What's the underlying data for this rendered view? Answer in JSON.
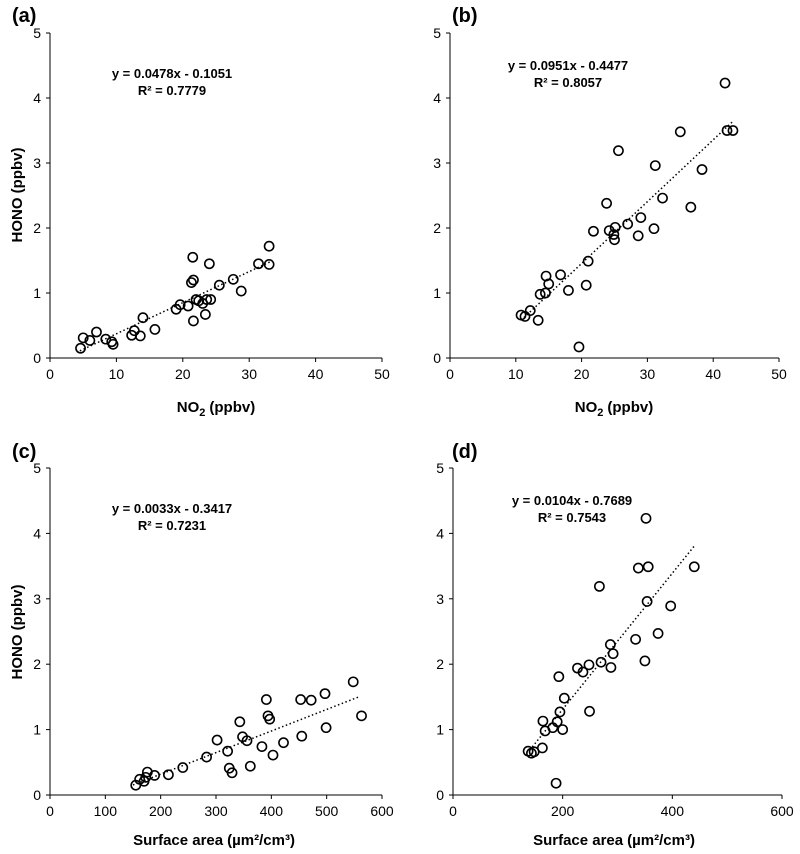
{
  "chart_data": [
    {
      "type": "scatter",
      "panel_label": "(a)",
      "xlabel": "NO",
      "xlabel_sub": "2",
      "xlabel_unit": "(ppbv)",
      "ylabel": "HONO (ppbv)",
      "xlim": [
        0,
        50
      ],
      "ylim": [
        0,
        5
      ],
      "xticks": [
        "0",
        "10",
        "20",
        "30",
        "40",
        "50"
      ],
      "yticks": [
        "0",
        "1",
        "2",
        "3",
        "4",
        "5"
      ],
      "equation": "y = 0.0478x - 0.1051",
      "r2": "R² = 0.7779",
      "trendline": {
        "slope": 0.0478,
        "intercept": -0.1051,
        "x_range": [
          4.5,
          33.3
        ]
      },
      "points": [
        [
          4.6,
          0.15
        ],
        [
          5.0,
          0.31
        ],
        [
          6.0,
          0.27
        ],
        [
          7.0,
          0.4
        ],
        [
          8.4,
          0.29
        ],
        [
          9.3,
          0.25
        ],
        [
          9.5,
          0.21
        ],
        [
          12.3,
          0.35
        ],
        [
          12.7,
          0.42
        ],
        [
          13.6,
          0.34
        ],
        [
          14.0,
          0.62
        ],
        [
          15.8,
          0.44
        ],
        [
          19.0,
          0.75
        ],
        [
          19.6,
          0.82
        ],
        [
          20.8,
          0.8
        ],
        [
          21.3,
          1.16
        ],
        [
          21.6,
          1.2
        ],
        [
          21.6,
          0.57
        ],
        [
          21.5,
          1.55
        ],
        [
          22.0,
          0.9
        ],
        [
          22.4,
          0.88
        ],
        [
          23.0,
          0.84
        ],
        [
          23.4,
          0.67
        ],
        [
          23.6,
          0.9
        ],
        [
          24.0,
          1.45
        ],
        [
          24.2,
          0.9
        ],
        [
          25.5,
          1.12
        ],
        [
          27.6,
          1.21
        ],
        [
          28.8,
          1.03
        ],
        [
          31.4,
          1.45
        ],
        [
          33.0,
          1.72
        ],
        [
          33.0,
          1.44
        ]
      ]
    },
    {
      "type": "scatter",
      "panel_label": "(b)",
      "xlabel": "NO",
      "xlabel_sub": "2",
      "xlabel_unit": "(ppbv)",
      "ylabel": "",
      "xlim": [
        0,
        50
      ],
      "ylim": [
        0,
        5
      ],
      "xticks": [
        "0",
        "10",
        "20",
        "30",
        "40",
        "50"
      ],
      "yticks": [
        "0",
        "1",
        "2",
        "3",
        "4",
        "5"
      ],
      "equation": "y = 0.0951x - 0.4477",
      "r2": "R² = 0.8057",
      "trendline": {
        "slope": 0.0951,
        "intercept": -0.4477,
        "x_range": [
          10.8,
          43.0
        ]
      },
      "points": [
        [
          10.8,
          0.66
        ],
        [
          11.4,
          0.64
        ],
        [
          12.2,
          0.73
        ],
        [
          13.4,
          0.58
        ],
        [
          13.7,
          0.98
        ],
        [
          14.5,
          1.0
        ],
        [
          14.6,
          1.26
        ],
        [
          15.0,
          1.14
        ],
        [
          16.8,
          1.28
        ],
        [
          18.0,
          1.04
        ],
        [
          19.6,
          0.17
        ],
        [
          20.7,
          1.12
        ],
        [
          21.0,
          1.49
        ],
        [
          21.8,
          1.95
        ],
        [
          23.8,
          2.38
        ],
        [
          24.2,
          1.96
        ],
        [
          24.9,
          1.9
        ],
        [
          25.0,
          1.82
        ],
        [
          25.1,
          2.01
        ],
        [
          25.6,
          3.19
        ],
        [
          27.0,
          2.06
        ],
        [
          28.6,
          1.88
        ],
        [
          29.0,
          2.16
        ],
        [
          31.0,
          1.99
        ],
        [
          31.2,
          2.96
        ],
        [
          32.3,
          2.46
        ],
        [
          35.0,
          3.48
        ],
        [
          36.6,
          2.32
        ],
        [
          38.3,
          2.9
        ],
        [
          41.8,
          4.23
        ],
        [
          42.1,
          3.5
        ],
        [
          43.0,
          3.5
        ]
      ]
    },
    {
      "type": "scatter",
      "panel_label": "(c)",
      "xlabel": "Surface area",
      "xlabel_unit": "(µm²/cm³)",
      "ylabel": "HONO (ppbv)",
      "xlim": [
        0,
        600
      ],
      "ylim": [
        0,
        5
      ],
      "xticks": [
        "0",
        "100",
        "200",
        "300",
        "400",
        "500",
        "600"
      ],
      "yticks": [
        "0",
        "1",
        "2",
        "3",
        "4",
        "5"
      ],
      "equation": "y = 0.0033x - 0.3417",
      "r2": "R² = 0.7231",
      "trendline": {
        "slope": 0.0033,
        "intercept": -0.3417,
        "x_range": [
          150,
          560
        ]
      },
      "points": [
        [
          155,
          0.15
        ],
        [
          162,
          0.24
        ],
        [
          170,
          0.21
        ],
        [
          173,
          0.27
        ],
        [
          176,
          0.35
        ],
        [
          189,
          0.3
        ],
        [
          214,
          0.31
        ],
        [
          240,
          0.42
        ],
        [
          283,
          0.58
        ],
        [
          302,
          0.84
        ],
        [
          321,
          0.67
        ],
        [
          324,
          0.41
        ],
        [
          329,
          0.34
        ],
        [
          343,
          1.12
        ],
        [
          348,
          0.89
        ],
        [
          356,
          0.83
        ],
        [
          362,
          0.44
        ],
        [
          383,
          0.74
        ],
        [
          391,
          1.46
        ],
        [
          394,
          1.21
        ],
        [
          397,
          1.16
        ],
        [
          403,
          0.61
        ],
        [
          422,
          0.8
        ],
        [
          453,
          1.46
        ],
        [
          455,
          0.9
        ],
        [
          472,
          1.45
        ],
        [
          497,
          1.55
        ],
        [
          499,
          1.03
        ],
        [
          548,
          1.73
        ],
        [
          563,
          1.21
        ]
      ]
    },
    {
      "type": "scatter",
      "panel_label": "(d)",
      "xlabel": "Surface area",
      "xlabel_unit": "(µm²/cm³)",
      "ylabel": "",
      "xlim": [
        0,
        600
      ],
      "ylim": [
        0,
        5
      ],
      "xticks": [
        "0",
        "200",
        "400",
        "600"
      ],
      "yticks": [
        "0",
        "1",
        "2",
        "3",
        "4",
        "5"
      ],
      "equation": "y = 0.0104x - 0.7689",
      "r2": "R² = 0.7543",
      "trendline": {
        "slope": 0.0104,
        "intercept": -0.7689,
        "x_range": [
          140,
          440
        ]
      },
      "points": [
        [
          137,
          0.67
        ],
        [
          143,
          0.64
        ],
        [
          148,
          0.66
        ],
        [
          163,
          0.72
        ],
        [
          164,
          1.13
        ],
        [
          168,
          0.98
        ],
        [
          182,
          1.03
        ],
        [
          188,
          0.18
        ],
        [
          190,
          1.12
        ],
        [
          193,
          1.81
        ],
        [
          195,
          1.27
        ],
        [
          200,
          1.0
        ],
        [
          203,
          1.48
        ],
        [
          227,
          1.94
        ],
        [
          237,
          1.88
        ],
        [
          248,
          1.99
        ],
        [
          249,
          1.28
        ],
        [
          267,
          3.19
        ],
        [
          270,
          2.03
        ],
        [
          287,
          2.3
        ],
        [
          288,
          1.95
        ],
        [
          292,
          2.16
        ],
        [
          333,
          2.38
        ],
        [
          338,
          3.47
        ],
        [
          350,
          2.05
        ],
        [
          352,
          4.23
        ],
        [
          354,
          2.96
        ],
        [
          356,
          3.49
        ],
        [
          374,
          2.47
        ],
        [
          397,
          2.89
        ],
        [
          440,
          3.49
        ]
      ]
    }
  ]
}
